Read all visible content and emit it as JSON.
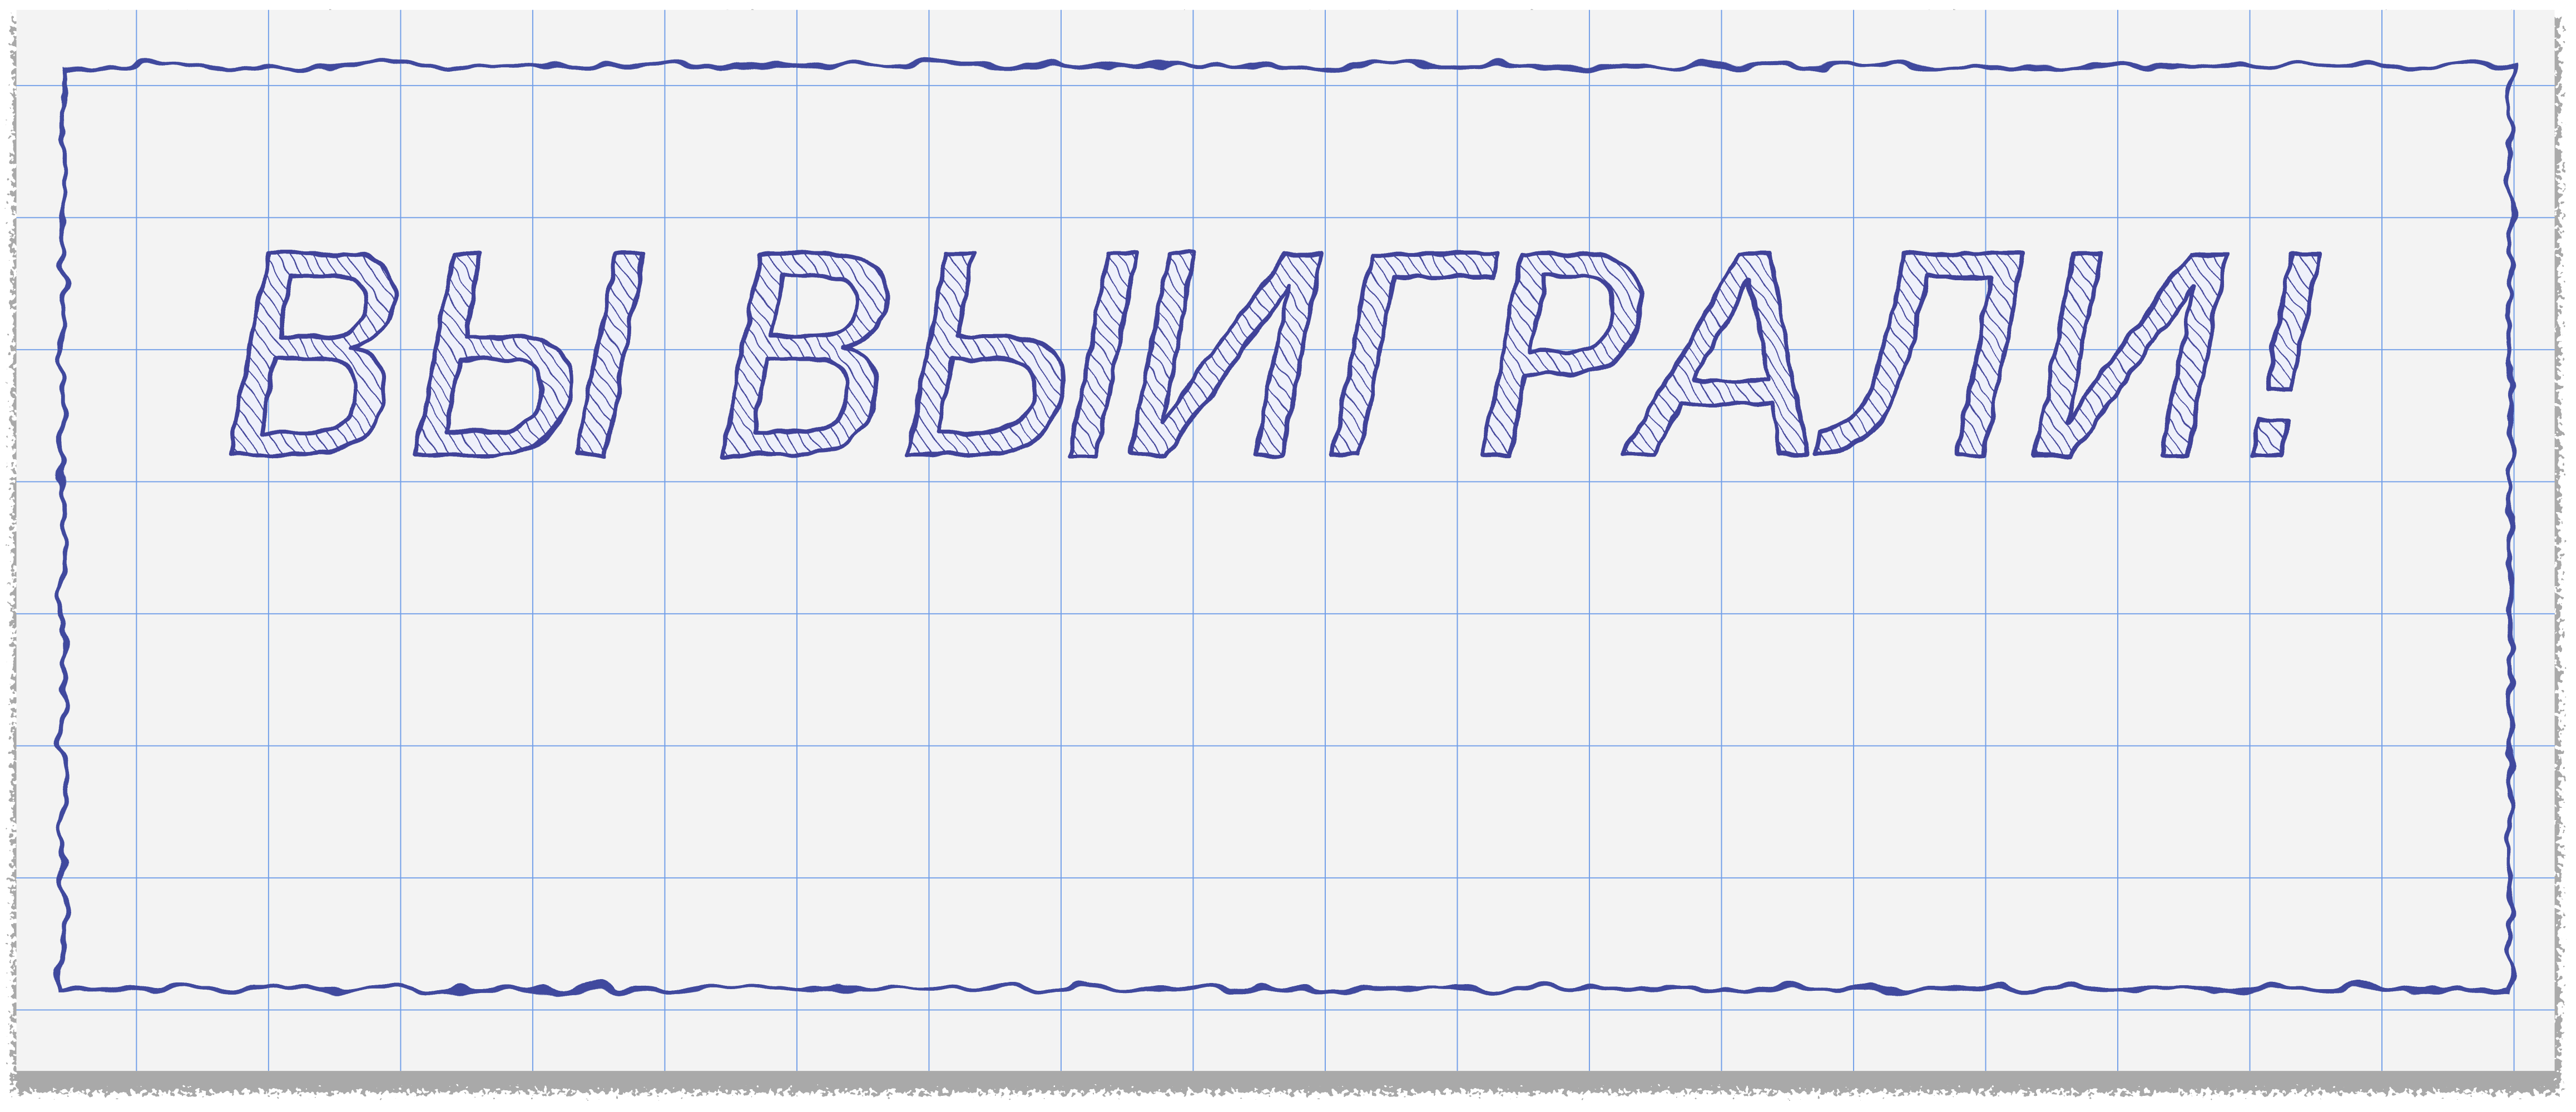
{
  "banner": {
    "text": "ВЫ ВЫИГРАЛИ!"
  }
}
